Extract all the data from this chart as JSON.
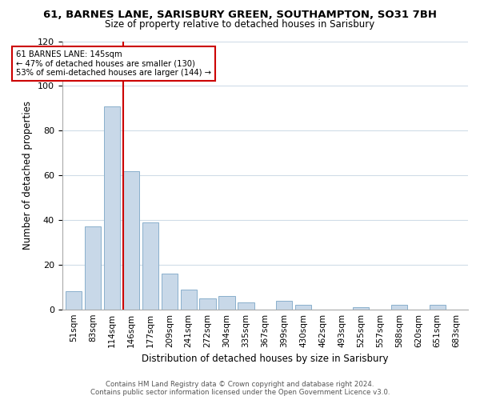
{
  "title_line1": "61, BARNES LANE, SARISBURY GREEN, SOUTHAMPTON, SO31 7BH",
  "title_line2": "Size of property relative to detached houses in Sarisbury",
  "xlabel": "Distribution of detached houses by size in Sarisbury",
  "ylabel": "Number of detached properties",
  "bar_labels": [
    "51sqm",
    "83sqm",
    "114sqm",
    "146sqm",
    "177sqm",
    "209sqm",
    "241sqm",
    "272sqm",
    "304sqm",
    "335sqm",
    "367sqm",
    "399sqm",
    "430sqm",
    "462sqm",
    "493sqm",
    "525sqm",
    "557sqm",
    "588sqm",
    "620sqm",
    "651sqm",
    "683sqm"
  ],
  "bar_values": [
    8,
    37,
    91,
    62,
    39,
    16,
    9,
    5,
    6,
    3,
    0,
    4,
    2,
    0,
    0,
    1,
    0,
    2,
    0,
    2,
    0
  ],
  "bar_color": "#c8d8e8",
  "bar_edge_color": "#8ab0cc",
  "annotation_title": "61 BARNES LANE: 145sqm",
  "annotation_line2": "← 47% of detached houses are smaller (130)",
  "annotation_line3": "53% of semi-detached houses are larger (144) →",
  "vline_color": "#cc0000",
  "annotation_box_edge": "#cc0000",
  "ylim": [
    0,
    120
  ],
  "yticks": [
    0,
    20,
    40,
    60,
    80,
    100,
    120
  ],
  "footer_line1": "Contains HM Land Registry data © Crown copyright and database right 2024.",
  "footer_line2": "Contains public sector information licensed under the Open Government Licence v3.0.",
  "background_color": "#ffffff",
  "grid_color": "#d0dce8"
}
